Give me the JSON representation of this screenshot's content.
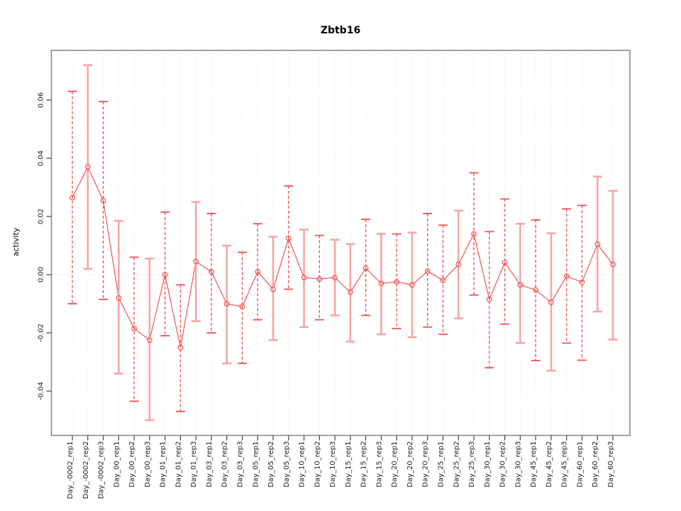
{
  "title": "Zbtb16",
  "chart_data": {
    "type": "line",
    "title": "Zbtb16",
    "xlabel": "",
    "ylabel": "activity",
    "ylim": [
      -0.055,
      0.077
    ],
    "ytick_values": [
      0.06,
      0.04,
      0.02,
      0.0,
      -0.02,
      -0.04
    ],
    "ytick_labels": [
      "0.06",
      "0.04",
      "0.02",
      "0.00",
      "-0.02",
      "-0.04"
    ],
    "grid": "vertical dotted gridline at every category; dotted horizontal line at y=0",
    "legend": "none",
    "marker": "open-circle",
    "categories": [
      "Day_-0002_rep1",
      "Day_-0002_rep2",
      "Day_-0002_rep3",
      "Day_00_rep1",
      "Day_00_rep2",
      "Day_00_rep3",
      "Day_01_rep1",
      "Day_01_rep2",
      "Day_01_rep3",
      "Day_03_rep1",
      "Day_03_rep2",
      "Day_03_rep3",
      "Day_05_rep1",
      "Day_05_rep2",
      "Day_05_rep3",
      "Day_10_rep1",
      "Day_10_rep2",
      "Day_10_rep3",
      "Day_15_rep1",
      "Day_15_rep2",
      "Day_15_rep3",
      "Day_20_rep1",
      "Day_20_rep2",
      "Day_20_rep3",
      "Day_25_rep1",
      "Day_25_rep2",
      "Day_25_rep3",
      "Day_30_rep1",
      "Day_30_rep2",
      "Day_30_rep3",
      "Day_45_rep1",
      "Day_45_rep2",
      "Day_45_rep3",
      "Day_60_rep1",
      "Day_60_rep2",
      "Day_60_rep3"
    ],
    "values": [
      0.0265,
      0.037,
      0.0255,
      -0.008,
      -0.0185,
      -0.0225,
      0.0,
      -0.025,
      0.0045,
      0.001,
      -0.01,
      -0.011,
      0.001,
      -0.005,
      0.0125,
      -0.001,
      -0.0015,
      -0.001,
      -0.006,
      0.0022,
      -0.003,
      -0.0025,
      -0.0035,
      0.0012,
      -0.002,
      0.0035,
      0.014,
      -0.0085,
      0.0042,
      -0.0035,
      -0.0053,
      -0.0095,
      -0.0005,
      -0.0026,
      0.0105,
      0.0035
    ],
    "error_low": [
      -0.01,
      0.002,
      -0.0085,
      -0.034,
      -0.0435,
      -0.05,
      -0.021,
      -0.047,
      -0.016,
      -0.02,
      -0.0305,
      -0.0305,
      -0.0155,
      -0.0225,
      -0.005,
      -0.018,
      -0.0155,
      -0.014,
      -0.023,
      -0.014,
      -0.0205,
      -0.0185,
      -0.0215,
      -0.018,
      -0.0205,
      -0.015,
      -0.007,
      -0.032,
      -0.017,
      -0.0235,
      -0.0295,
      -0.033,
      -0.0235,
      -0.0294,
      -0.0127,
      -0.0223
    ],
    "error_high": [
      0.063,
      0.072,
      0.0595,
      0.0185,
      0.006,
      0.0055,
      0.0215,
      -0.0035,
      0.025,
      0.021,
      0.01,
      0.0077,
      0.0175,
      0.013,
      0.0305,
      0.0155,
      0.0135,
      0.012,
      0.0105,
      0.019,
      0.014,
      0.014,
      0.0145,
      0.021,
      0.017,
      0.022,
      0.035,
      0.0148,
      0.026,
      0.0175,
      0.0188,
      0.0142,
      0.0226,
      0.0238,
      0.0337,
      0.0288
    ],
    "bar_styles": [
      "dashed",
      "solid",
      "dashed",
      "solid",
      "dashed",
      "solid",
      "dashed",
      "dashed",
      "solid",
      "dashed",
      "solid",
      "dashed",
      "dashed",
      "solid",
      "dashed",
      "solid",
      "dashed",
      "solid",
      "solid",
      "dashed",
      "solid",
      "dashed",
      "solid",
      "dashed",
      "dashed",
      "solid",
      "dashed",
      "dashed",
      "dashed",
      "solid",
      "dashed",
      "solid",
      "dashed",
      "dashed",
      "solid",
      "solid"
    ],
    "colors": {
      "series_line": "#f15454",
      "marker_stroke": "#f15454",
      "errorbar_dashed": "#ef5252",
      "errorbar_solid": "#f7a6a6",
      "plot_border": "#8a8a8a",
      "tick_mark": "#404040",
      "tick_label": "#1c1c1c",
      "gridline": "#e0e0e0",
      "zero_line": "#d8d8d8",
      "title_color": "#000000"
    }
  }
}
